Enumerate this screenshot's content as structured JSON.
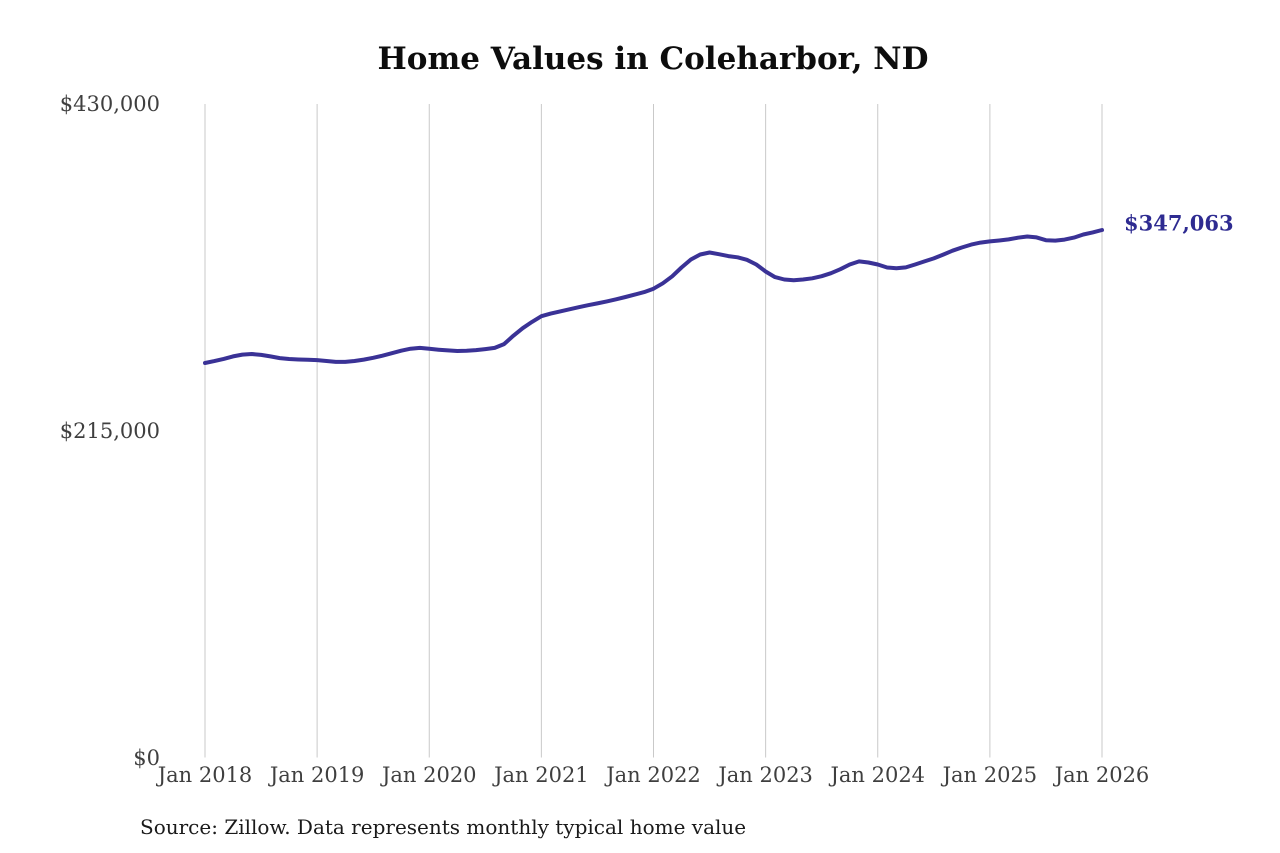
{
  "title": "Home Values in Coleharbor, ND",
  "source_note": "Source: Zillow. Data represents monthly typical home value",
  "end_label": "$347,063",
  "colors": {
    "background": "#ffffff",
    "line": "#3a3296",
    "end_label": "#2e2b91",
    "grid": "#c9c9c9",
    "axis_text": "#3f3f3f",
    "title_text": "#0d0d0d",
    "source_text": "#1a1a1a"
  },
  "chart_data": {
    "type": "line",
    "title": "Home Values in Coleharbor, ND",
    "xlabel": "",
    "ylabel": "",
    "x_start_month": "Jan 2018",
    "x_end_month": "Jan 2026",
    "x_tick_labels": [
      "Jan 2018",
      "Jan 2019",
      "Jan 2020",
      "Jan 2021",
      "Jan 2022",
      "Jan 2023",
      "Jan 2024",
      "Jan 2025",
      "Jan 2026"
    ],
    "y_ticks": [
      {
        "value": 0,
        "label": "$0"
      },
      {
        "value": 215000,
        "label": "$215,000"
      },
      {
        "value": 430000,
        "label": "$430,000"
      }
    ],
    "ylim": [
      0,
      430000
    ],
    "grid": "vertical-only",
    "legend": "none",
    "end_value": 347063,
    "series": [
      {
        "name": "Monthly typical home value",
        "values": [
          259600,
          260800,
          262300,
          263900,
          265100,
          265500,
          264900,
          263900,
          262800,
          262200,
          261900,
          261700,
          261500,
          260900,
          260300,
          260300,
          260900,
          261800,
          263000,
          264400,
          266000,
          267700,
          269000,
          269500,
          268900,
          268300,
          267900,
          267500,
          267600,
          268100,
          268700,
          269500,
          272000,
          277500,
          282500,
          286600,
          290400,
          292100,
          293500,
          294900,
          296300,
          297600,
          298800,
          300100,
          301500,
          303000,
          304600,
          306200,
          308500,
          312000,
          316600,
          322400,
          327700,
          331000,
          332300,
          331200,
          329900,
          329100,
          327500,
          324400,
          319800,
          316100,
          314500,
          314000,
          314500,
          315300,
          316700,
          318700,
          321300,
          324400,
          326400,
          325700,
          324400,
          322400,
          321900,
          322500,
          324400,
          326400,
          328400,
          330900,
          333500,
          335600,
          337500,
          338800,
          339600,
          340200,
          340900,
          342000,
          342800,
          342200,
          340400,
          340100,
          340800,
          342100,
          344100,
          345500,
          347063
        ]
      }
    ]
  }
}
